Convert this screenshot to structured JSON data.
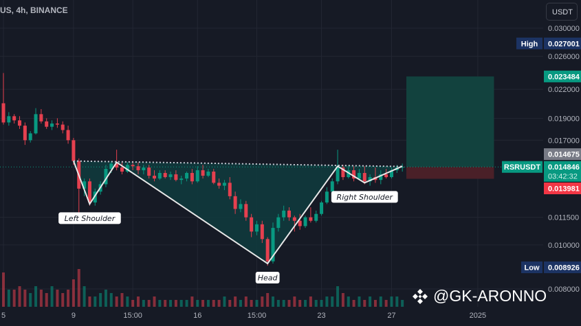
{
  "header": {
    "title": "US, 4h, BINANCE",
    "currency_button": "USDT"
  },
  "watermark": {
    "text": "@GK-ARONNO",
    "icon": "binance-logo-icon"
  },
  "colors": {
    "background": "#161a25",
    "grid": "#232733",
    "up": "#089981",
    "down": "#e5404f",
    "pattern_fill": "#0f3a3d",
    "pattern_line": "#e8e8e8",
    "profit_zone": "#12423e",
    "loss_zone": "#4a2028",
    "high_low_badge": "#1c3363"
  },
  "chart_data": {
    "type": "candlestick",
    "symbol": "RSRUSDT",
    "y_scale": "log",
    "ylim": [
      0.008,
      0.03
    ],
    "grid": true,
    "y_ticks": [
      "0.030000",
      "0.026000",
      "0.022000",
      "0.019000",
      "0.017000",
      "0.011500",
      "0.010000",
      "0.008000"
    ],
    "x_ticks": [
      {
        "label": "5",
        "candle": 1
      },
      {
        "label": "9",
        "candle": 14
      },
      {
        "label": "15:00",
        "candle": 25
      },
      {
        "label": "16",
        "candle": 37
      },
      {
        "label": "15:00",
        "candle": 48
      },
      {
        "label": "23",
        "candle": 60
      },
      {
        "label": "27",
        "candle": 73
      },
      {
        "label": "2025",
        "candle": 89
      }
    ],
    "candles": [
      [
        0.0205,
        0.0239,
        0.0184,
        0.0186
      ],
      [
        0.0186,
        0.0196,
        0.0183,
        0.0192
      ],
      [
        0.0192,
        0.0194,
        0.0185,
        0.0188
      ],
      [
        0.0188,
        0.0192,
        0.018,
        0.0183
      ],
      [
        0.0183,
        0.0186,
        0.0166,
        0.017
      ],
      [
        0.017,
        0.0178,
        0.0168,
        0.0176
      ],
      [
        0.0176,
        0.02,
        0.0175,
        0.0194
      ],
      [
        0.0194,
        0.0199,
        0.0185,
        0.0187
      ],
      [
        0.0187,
        0.019,
        0.018,
        0.0182
      ],
      [
        0.0182,
        0.0188,
        0.0179,
        0.0185
      ],
      [
        0.0185,
        0.019,
        0.0181,
        0.0184
      ],
      [
        0.0184,
        0.0187,
        0.0176,
        0.0179
      ],
      [
        0.0179,
        0.0183,
        0.0167,
        0.017
      ],
      [
        0.017,
        0.0172,
        0.015,
        0.0153
      ],
      [
        0.0153,
        0.0155,
        0.0112,
        0.0133
      ],
      [
        0.0133,
        0.014,
        0.0128,
        0.0138
      ],
      [
        0.0138,
        0.014,
        0.0122,
        0.0124
      ],
      [
        0.0124,
        0.0133,
        0.0122,
        0.0131
      ],
      [
        0.0131,
        0.0138,
        0.0129,
        0.0136
      ],
      [
        0.0136,
        0.015,
        0.0134,
        0.0147
      ],
      [
        0.0147,
        0.0153,
        0.0144,
        0.0151
      ],
      [
        0.0151,
        0.0162,
        0.0146,
        0.0148
      ],
      [
        0.0148,
        0.0152,
        0.0143,
        0.0145
      ],
      [
        0.0145,
        0.0152,
        0.0144,
        0.015
      ],
      [
        0.015,
        0.0153,
        0.0146,
        0.0149
      ],
      [
        0.0149,
        0.0152,
        0.0143,
        0.0146
      ],
      [
        0.0146,
        0.015,
        0.0143,
        0.0148
      ],
      [
        0.0148,
        0.015,
        0.014,
        0.0142
      ],
      [
        0.0142,
        0.0146,
        0.0138,
        0.014
      ],
      [
        0.014,
        0.0146,
        0.0139,
        0.0144
      ],
      [
        0.0144,
        0.0146,
        0.014,
        0.0141
      ],
      [
        0.0141,
        0.0145,
        0.0139,
        0.0143
      ],
      [
        0.0143,
        0.0146,
        0.0138,
        0.0139
      ],
      [
        0.0139,
        0.0142,
        0.0136,
        0.014
      ],
      [
        0.014,
        0.0145,
        0.0138,
        0.0144
      ],
      [
        0.0144,
        0.0147,
        0.0136,
        0.0138
      ],
      [
        0.0138,
        0.0149,
        0.0137,
        0.0146
      ],
      [
        0.0146,
        0.015,
        0.014,
        0.0142
      ],
      [
        0.0142,
        0.0147,
        0.0141,
        0.0145
      ],
      [
        0.0145,
        0.0147,
        0.0136,
        0.0137
      ],
      [
        0.0137,
        0.014,
        0.0133,
        0.0135
      ],
      [
        0.0135,
        0.0139,
        0.0132,
        0.0137
      ],
      [
        0.0137,
        0.0141,
        0.0126,
        0.0128
      ],
      [
        0.0128,
        0.0131,
        0.0117,
        0.012
      ],
      [
        0.012,
        0.0126,
        0.0118,
        0.0123
      ],
      [
        0.0123,
        0.0125,
        0.0113,
        0.0115
      ],
      [
        0.0115,
        0.0117,
        0.0104,
        0.0107
      ],
      [
        0.0107,
        0.0113,
        0.0105,
        0.0111
      ],
      [
        0.0111,
        0.0113,
        0.0101,
        0.0103
      ],
      [
        0.0103,
        0.0104,
        0.009,
        0.0092
      ],
      [
        0.0092,
        0.0112,
        0.0091,
        0.0109
      ],
      [
        0.0109,
        0.0117,
        0.0107,
        0.0115
      ],
      [
        0.0115,
        0.0122,
        0.0113,
        0.0119
      ],
      [
        0.0119,
        0.0121,
        0.0113,
        0.0115
      ],
      [
        0.0115,
        0.0116,
        0.0107,
        0.0113
      ],
      [
        0.0113,
        0.0117,
        0.0108,
        0.011
      ],
      [
        0.011,
        0.0116,
        0.0109,
        0.0115
      ],
      [
        0.0115,
        0.0121,
        0.0112,
        0.0113
      ],
      [
        0.0113,
        0.0119,
        0.0112,
        0.0117
      ],
      [
        0.0117,
        0.0125,
        0.0116,
        0.0124
      ],
      [
        0.0124,
        0.0134,
        0.0123,
        0.0131
      ],
      [
        0.0131,
        0.014,
        0.013,
        0.0138
      ],
      [
        0.0138,
        0.0162,
        0.0136,
        0.0148
      ],
      [
        0.0148,
        0.015,
        0.0139,
        0.0141
      ],
      [
        0.0141,
        0.0149,
        0.014,
        0.0146
      ],
      [
        0.0146,
        0.0149,
        0.0138,
        0.014
      ],
      [
        0.014,
        0.0147,
        0.0139,
        0.0144
      ],
      [
        0.0144,
        0.0149,
        0.0136,
        0.0138
      ],
      [
        0.0138,
        0.0143,
        0.0135,
        0.0141
      ],
      [
        0.0141,
        0.0148,
        0.0137,
        0.0139
      ],
      [
        0.0139,
        0.0146,
        0.0136,
        0.0143
      ],
      [
        0.0143,
        0.0147,
        0.014,
        0.0141
      ],
      [
        0.0141,
        0.0148,
        0.014,
        0.0146
      ],
      [
        0.0146,
        0.015,
        0.0144,
        0.0148
      ],
      [
        0.0148,
        0.0151,
        0.0145,
        0.014846
      ]
    ],
    "volumes": [
      10,
      5,
      5,
      6,
      5,
      4,
      6,
      5,
      4,
      6,
      5,
      4,
      5,
      8,
      11,
      6,
      3,
      3,
      4,
      5,
      4,
      3,
      4,
      3,
      2,
      3,
      2,
      2,
      3,
      2,
      2,
      2,
      2,
      2,
      2,
      3,
      2,
      2,
      2,
      2,
      2,
      3,
      2,
      3,
      2,
      3,
      2,
      2,
      3,
      4,
      3,
      2,
      2,
      2,
      3,
      2,
      2,
      3,
      2,
      2,
      3,
      3,
      6,
      4,
      3,
      2,
      3,
      2,
      3,
      2,
      3,
      2,
      3,
      3,
      2
    ],
    "pattern": {
      "points": [
        {
          "candle": 14,
          "price": 0.0153
        },
        {
          "candle": 17,
          "price": 0.0123
        },
        {
          "candle": 22,
          "price": 0.0152
        },
        {
          "candle": 50,
          "price": 0.0091
        },
        {
          "candle": 63,
          "price": 0.0149
        },
        {
          "candle": 68,
          "price": 0.0137
        },
        {
          "candle": 75,
          "price": 0.0149
        }
      ],
      "neckline": [
        {
          "candle": 14,
          "price": 0.0153
        },
        {
          "candle": 75,
          "price": 0.01488
        }
      ],
      "labels": [
        {
          "text": "Left Shoulder",
          "candle": 17,
          "price": 0.0123
        },
        {
          "text": "Head",
          "candle": 50,
          "price": 0.0091
        },
        {
          "text": "Right Shoulder",
          "candle": 68,
          "price": 0.0137
        }
      ]
    },
    "position": {
      "type": "long",
      "from_candle": 76,
      "to_candle": 92,
      "entry": 0.014846,
      "target": 0.023484,
      "stop": 0.013981
    },
    "price_labels": [
      {
        "kind": "high",
        "tag": "High",
        "value": "0.027001",
        "price": 0.027001
      },
      {
        "kind": "target",
        "value": "0.023484",
        "price": 0.023484
      },
      {
        "kind": "last",
        "tag": "RSRUSDT",
        "value": "0.014846",
        "countdown": "03:42:32",
        "price": 0.014846
      },
      {
        "kind": "grey",
        "value": "0.014675",
        "price": 0.014675
      },
      {
        "kind": "stop",
        "value": "0.013981",
        "price": 0.013981
      },
      {
        "kind": "low",
        "tag": "Low",
        "value": "0.008926",
        "price": 0.008926
      }
    ]
  }
}
